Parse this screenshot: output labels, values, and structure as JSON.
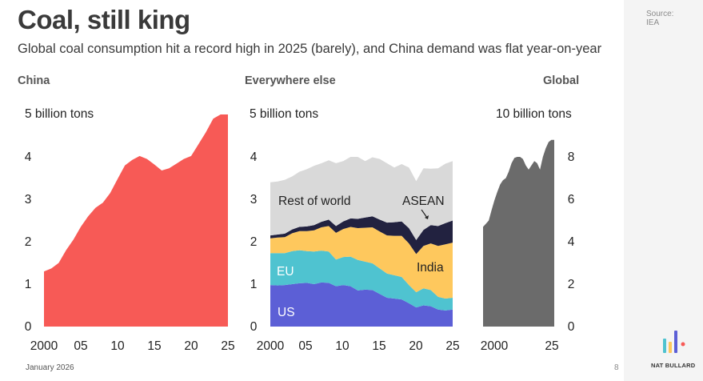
{
  "title": "Coal, still king",
  "subtitle": "Global coal consumption hit a record high in 2025 (barely), and China demand was flat year-on-year",
  "source": {
    "label": "Source:",
    "name": "IEA"
  },
  "footer": {
    "date": "January 2026",
    "page": "8",
    "brand": "NAT BULLARD"
  },
  "colors": {
    "china": "#f75a56",
    "rest_of_world": "#d9d9d9",
    "asean": "#222240",
    "india": "#fec85d",
    "eu": "#4fc3d0",
    "us": "#5c5fd6",
    "global": "#6b6b6b",
    "brand": [
      "#4fc3d0",
      "#fec85d",
      "#5c5fd6",
      "#f75a56"
    ]
  },
  "chart_data": [
    {
      "type": "area",
      "panel_title": "China",
      "ylabel": "5 billion tons",
      "ylim": [
        0,
        5
      ],
      "yticks": [
        "0",
        "1",
        "2",
        "3",
        "4"
      ],
      "xticks": [
        "2000",
        "05",
        "10",
        "15",
        "20",
        "25"
      ],
      "x": [
        2000,
        2001,
        2002,
        2003,
        2004,
        2005,
        2006,
        2007,
        2008,
        2009,
        2010,
        2011,
        2012,
        2013,
        2014,
        2015,
        2016,
        2017,
        2018,
        2019,
        2020,
        2021,
        2022,
        2023,
        2024,
        2025
      ],
      "series": [
        {
          "name": "",
          "values": [
            1.3,
            1.37,
            1.5,
            1.8,
            2.05,
            2.35,
            2.6,
            2.8,
            2.92,
            3.15,
            3.48,
            3.8,
            3.93,
            4.02,
            3.95,
            3.82,
            3.68,
            3.73,
            3.84,
            3.95,
            4.02,
            4.3,
            4.58,
            4.9,
            5.0,
            5.0
          ]
        }
      ]
    },
    {
      "type": "area",
      "stacked": true,
      "panel_title": "Everywhere else",
      "ylabel": "5 billion tons",
      "ylim": [
        0,
        5
      ],
      "yticks": [
        "0",
        "1",
        "2",
        "3",
        "4"
      ],
      "xticks": [
        "2000",
        "05",
        "10",
        "15",
        "20",
        "25"
      ],
      "x": [
        2000,
        2001,
        2002,
        2003,
        2004,
        2005,
        2006,
        2007,
        2008,
        2009,
        2010,
        2011,
        2012,
        2013,
        2014,
        2015,
        2016,
        2017,
        2018,
        2019,
        2020,
        2021,
        2022,
        2023,
        2024,
        2025
      ],
      "series": [
        {
          "name": "US",
          "values": [
            0.98,
            0.97,
            0.98,
            1.0,
            1.02,
            1.03,
            1.0,
            1.04,
            1.03,
            0.95,
            0.98,
            0.95,
            0.85,
            0.87,
            0.86,
            0.77,
            0.68,
            0.66,
            0.64,
            0.55,
            0.45,
            0.5,
            0.48,
            0.4,
            0.38,
            0.4
          ]
        },
        {
          "name": "EU",
          "values": [
            0.75,
            0.76,
            0.75,
            0.78,
            0.78,
            0.75,
            0.77,
            0.75,
            0.74,
            0.63,
            0.66,
            0.7,
            0.72,
            0.66,
            0.63,
            0.6,
            0.57,
            0.55,
            0.53,
            0.43,
            0.36,
            0.4,
            0.38,
            0.3,
            0.28,
            0.28
          ]
        },
        {
          "name": "India",
          "values": [
            0.35,
            0.37,
            0.38,
            0.42,
            0.45,
            0.47,
            0.5,
            0.55,
            0.6,
            0.63,
            0.66,
            0.7,
            0.75,
            0.8,
            0.85,
            0.87,
            0.9,
            0.93,
            0.97,
            0.98,
            0.9,
            1.0,
            1.1,
            1.2,
            1.28,
            1.3
          ]
        },
        {
          "name": "ASEAN",
          "values": [
            0.07,
            0.07,
            0.08,
            0.09,
            0.1,
            0.11,
            0.12,
            0.13,
            0.15,
            0.16,
            0.18,
            0.2,
            0.22,
            0.24,
            0.26,
            0.28,
            0.3,
            0.32,
            0.34,
            0.36,
            0.33,
            0.38,
            0.43,
            0.47,
            0.5,
            0.52
          ]
        },
        {
          "name": "Rest of world",
          "values": [
            1.25,
            1.25,
            1.27,
            1.25,
            1.3,
            1.35,
            1.4,
            1.38,
            1.4,
            1.48,
            1.42,
            1.45,
            1.46,
            1.33,
            1.39,
            1.43,
            1.4,
            1.29,
            1.35,
            1.43,
            1.39,
            1.45,
            1.33,
            1.36,
            1.4,
            1.4
          ]
        }
      ],
      "annotations": [
        "Rest of world",
        "ASEAN",
        "India",
        "EU",
        "US"
      ]
    },
    {
      "type": "area",
      "panel_title": "Global",
      "ylabel": "10 billion tons",
      "ylim": [
        0,
        10
      ],
      "yticks": [
        "0",
        "2",
        "4",
        "6",
        "8"
      ],
      "xticks": [
        "2000",
        "25"
      ],
      "x": [
        2000,
        2001,
        2002,
        2003,
        2004,
        2005,
        2006,
        2007,
        2008,
        2009,
        2010,
        2011,
        2012,
        2013,
        2014,
        2015,
        2016,
        2017,
        2018,
        2019,
        2020,
        2021,
        2022,
        2023,
        2024,
        2025
      ],
      "series": [
        {
          "name": "",
          "values": [
            4.7,
            4.85,
            5.0,
            5.5,
            5.95,
            6.35,
            6.7,
            6.9,
            7.0,
            7.3,
            7.7,
            7.95,
            8.0,
            8.0,
            7.9,
            7.6,
            7.4,
            7.6,
            7.8,
            7.7,
            7.4,
            8.0,
            8.4,
            8.7,
            8.8,
            8.8
          ]
        }
      ]
    }
  ]
}
